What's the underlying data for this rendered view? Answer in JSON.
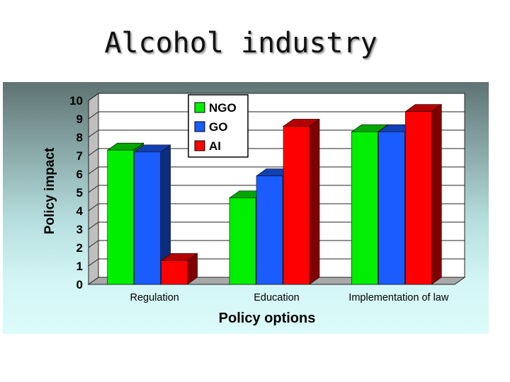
{
  "slide": {
    "title": "Alcohol industry"
  },
  "chart_data": {
    "type": "bar",
    "title": "",
    "xlabel": "Policy options",
    "ylabel": "Policy impact",
    "ylim": [
      0,
      10
    ],
    "yticks": [
      "0",
      "1",
      "2",
      "3",
      "4",
      "5",
      "6",
      "7",
      "8",
      "9",
      "10"
    ],
    "categories": [
      "Regulation",
      "Education",
      "Implementation of law"
    ],
    "series": [
      {
        "name": "NGO",
        "color": "#00ee00",
        "values": [
          7.3,
          4.7,
          8.3
        ]
      },
      {
        "name": "GO",
        "color": "#1a5cff",
        "values": [
          7.2,
          5.9,
          8.3
        ]
      },
      {
        "name": "AI",
        "color": "#ff0000",
        "values": [
          1.3,
          8.6,
          9.4
        ]
      }
    ],
    "legend_position": "top-center",
    "grid": true,
    "style": "3d"
  }
}
